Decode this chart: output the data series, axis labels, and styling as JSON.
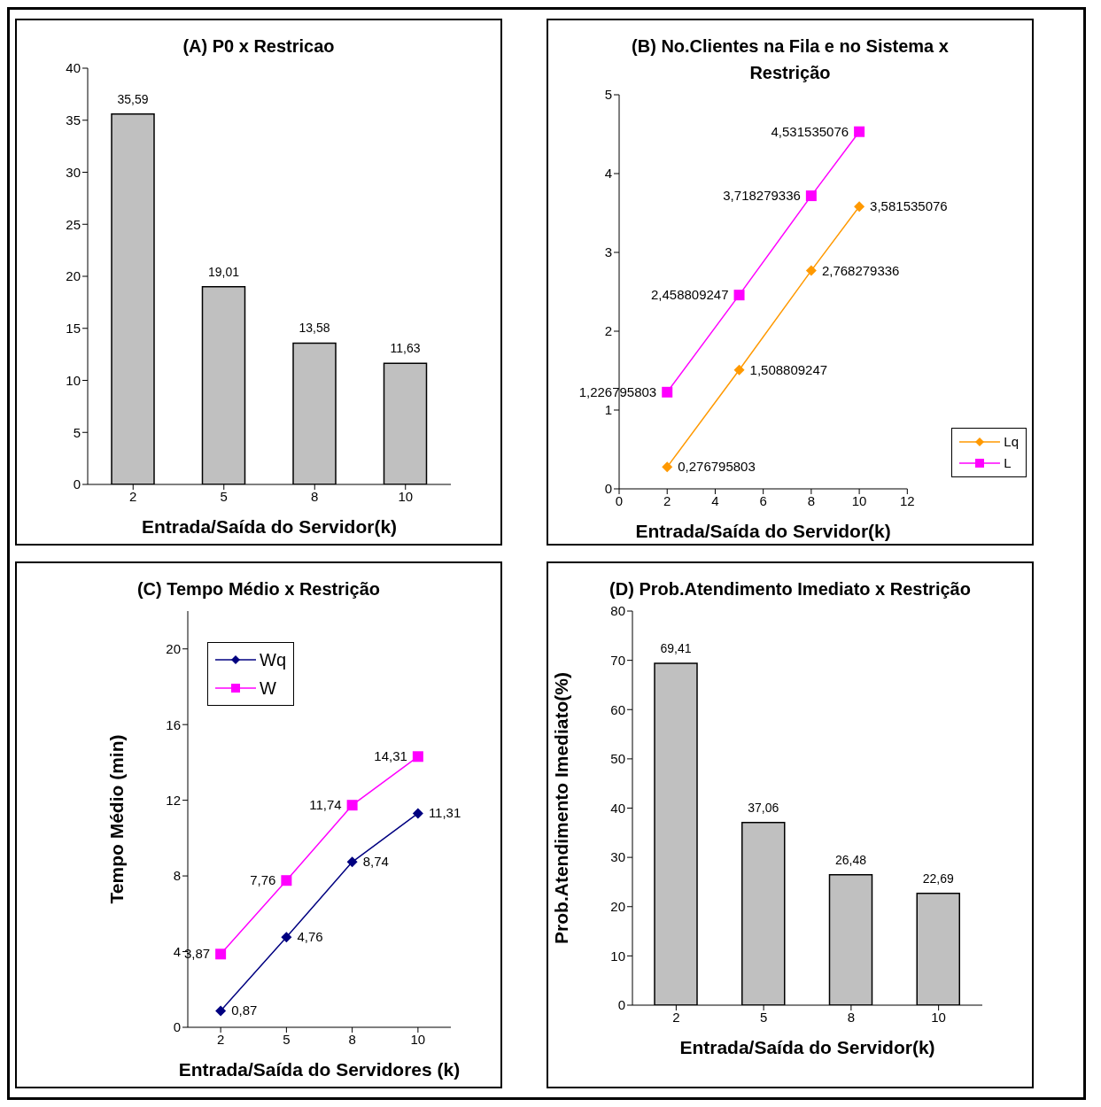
{
  "chart_data": [
    {
      "type": "bar",
      "title": "(A)  P0 x Restricao",
      "xlabel": "Entrada/Saída do Servidor(k)",
      "categories": [
        "2",
        "5",
        "8",
        "10"
      ],
      "values": [
        35.59,
        19.01,
        13.58,
        11.63
      ],
      "value_labels": [
        "35,59",
        "19,01",
        "13,58",
        "11,63"
      ],
      "color": "#c0c0c0",
      "ylim": [
        0,
        40
      ],
      "yticks": [
        0,
        5,
        10,
        15,
        20,
        25,
        30,
        35,
        40
      ],
      "grid": false,
      "legend": false
    },
    {
      "type": "line",
      "title": "(B) No.Clientes na Fila e no Sistema x Restrição",
      "xlabel": "Entrada/Saída do Servidor(k)",
      "x": [
        2,
        5,
        8,
        10
      ],
      "series": [
        {
          "name": "Lq",
          "color": "#ff9900",
          "marker": "diamond",
          "values": [
            0.276795803,
            1.508809247,
            2.768279336,
            3.581535076
          ],
          "value_labels": [
            "0,276795803",
            "1,508809247",
            "2,768279336",
            "3,581535076"
          ]
        },
        {
          "name": "L",
          "color": "#ff00ff",
          "marker": "square",
          "values": [
            1.226795803,
            2.458809247,
            3.718279336,
            4.531535076
          ],
          "value_labels": [
            "1,226795803",
            "2,458809247",
            "3,718279336",
            "4,531535076"
          ]
        }
      ],
      "xlim": [
        0,
        12
      ],
      "xticks": [
        0,
        2,
        4,
        6,
        8,
        10,
        12
      ],
      "ylim": [
        0,
        5
      ],
      "yticks": [
        0,
        1,
        2,
        3,
        4,
        5
      ],
      "grid": false,
      "legend": "bottom right"
    },
    {
      "type": "line",
      "title": "(C) Tempo Médio x Restrição",
      "xlabel": "Entrada/Saída do Servidores (k)",
      "ylabel": "Tempo Médio (min)",
      "categories": [
        "2",
        "5",
        "8",
        "10"
      ],
      "series": [
        {
          "name": "Wq",
          "color": "#000080",
          "marker": "diamond",
          "values": [
            0.87,
            4.76,
            8.74,
            11.31
          ],
          "value_labels": [
            "0,87",
            "4,76",
            "8,74",
            "11,31"
          ]
        },
        {
          "name": "W",
          "color": "#ff00ff",
          "marker": "square",
          "values": [
            3.87,
            7.76,
            11.74,
            14.31
          ],
          "value_labels": [
            "3,87",
            "7,76",
            "11,74",
            "14,31"
          ]
        }
      ],
      "ylim": [
        0,
        22
      ],
      "yticks": [
        0,
        4,
        8,
        12,
        16,
        20
      ],
      "grid": false,
      "legend": "top left"
    },
    {
      "type": "bar",
      "title": "(D) Prob.Atendimento Imediato x Restrição",
      "xlabel": "Entrada/Saída do Servidor(k)",
      "ylabel": "Prob.Atendimento Imediato(%)",
      "categories": [
        "2",
        "5",
        "8",
        "10"
      ],
      "values": [
        69.41,
        37.06,
        26.48,
        22.69
      ],
      "value_labels": [
        "69,41",
        "37,06",
        "26,48",
        "22,69"
      ],
      "color": "#c0c0c0",
      "ylim": [
        0,
        80
      ],
      "yticks": [
        0,
        10,
        20,
        30,
        40,
        50,
        60,
        70,
        80
      ],
      "grid": false,
      "legend": false
    }
  ]
}
